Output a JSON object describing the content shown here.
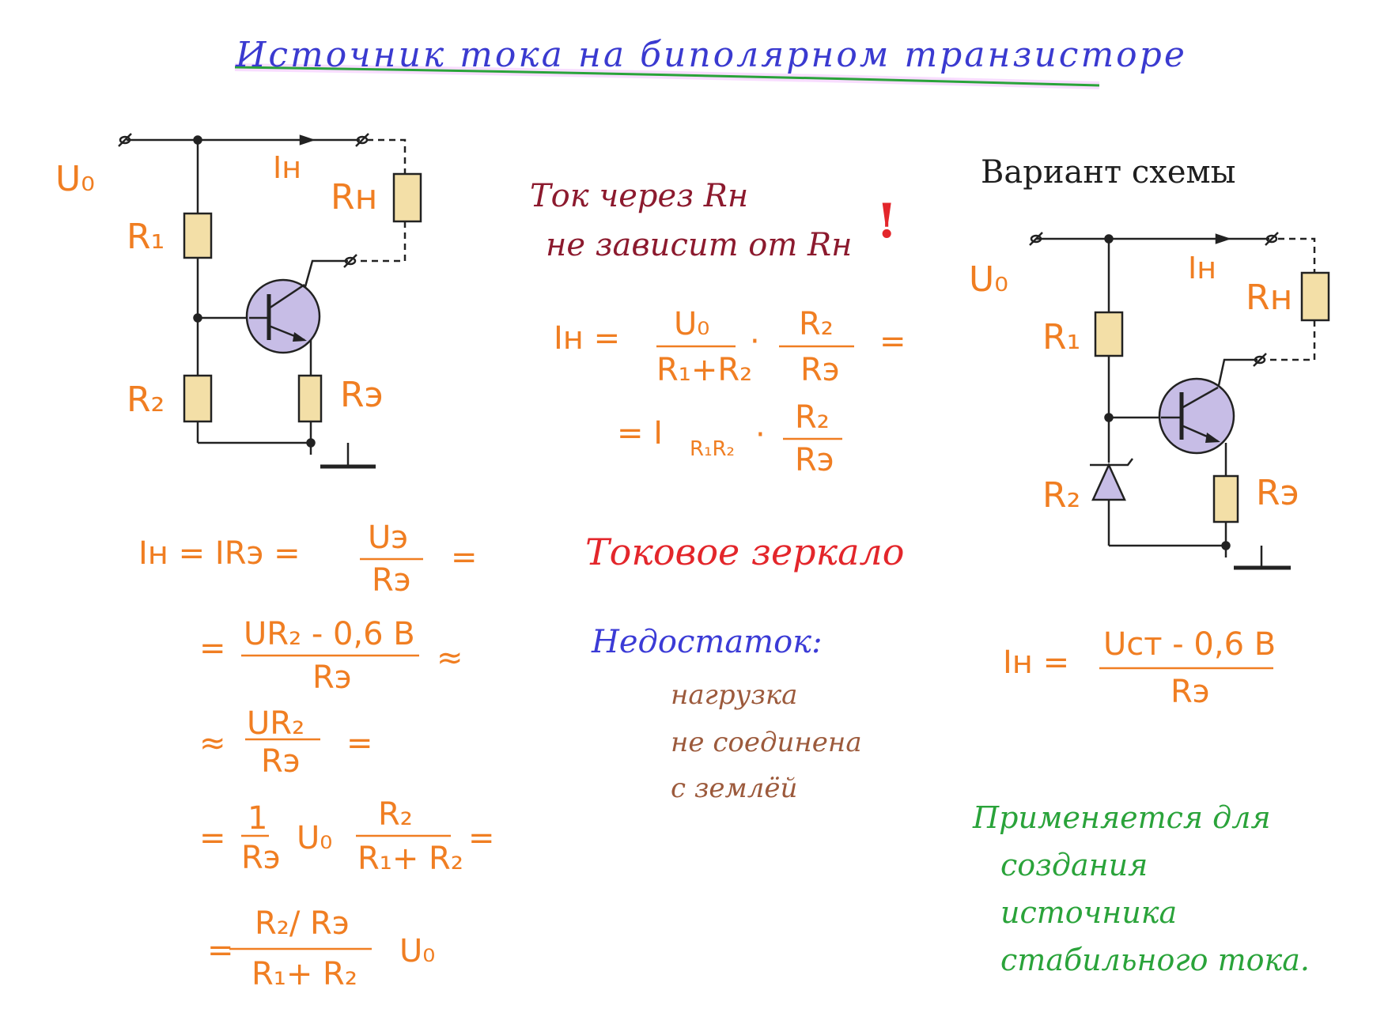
{
  "title": "Источник тока на биполярном транзисторе",
  "left_circuit": {
    "u0": "U₀",
    "ih": "Iн",
    "rh": "Rн",
    "r1": "R₁",
    "r2": "R₂",
    "re": "Rэ"
  },
  "note_independent": {
    "line1": "Ток через Rн",
    "line2": "не зависит от Rн",
    "exclaim": "!"
  },
  "formula_main": {
    "lhs": "Iн =",
    "f1_num": "U₀",
    "f1_den": "R₁+R₂",
    "dot": "·",
    "f2_num": "R₂",
    "f2_den": "Rэ",
    "eq_tail": "=",
    "line2_lhs": "= I",
    "line2_sub": "R₁R₂",
    "f3_num": "R₂",
    "f3_den": "Rэ"
  },
  "derivation": {
    "d1_lhs": "Iн = IRэ =",
    "d1_num": "Uэ",
    "d1_den": "Rэ",
    "d1_tail": "=",
    "d2_lhs": "=",
    "d2_num": "UR₂ - 0,6 B",
    "d2_den": "Rэ",
    "d2_tail": "≈",
    "d3_lhs": "≈",
    "d3_num": "UR₂",
    "d3_den": "Rэ",
    "d3_tail": "=",
    "d4_lhs": "=",
    "d4_f1_num": "1",
    "d4_f1_den": "Rэ",
    "d4_mid": "U₀",
    "d4_f2_num": "R₂",
    "d4_f2_den": "R₁+ R₂",
    "d4_tail": "=",
    "d5_lhs": "=",
    "d5_num": "R₂/ Rэ",
    "d5_den": "R₁+ R₂",
    "d5_tail": "U₀"
  },
  "current_mirror": "Токовое зеркало",
  "drawback": {
    "heading": "Недостаток:",
    "line1": "нагрузка",
    "line2": "не соединена",
    "line3": "с землёй"
  },
  "variant": {
    "heading": "Вариант схемы",
    "u0": "U₀",
    "ih": "Iн",
    "rh": "Rн",
    "r1": "R₁",
    "r2": "R₂",
    "re": "Rэ",
    "f_lhs": "Iн =",
    "f_num": "Uст - 0,6 B",
    "f_den": "Rэ"
  },
  "application": {
    "line1": "Применяется для",
    "line2": "создания",
    "line3": "источника",
    "line4": "стабильного тока."
  },
  "colors": {
    "orange": "#f07e22",
    "resistor_fill": "#f3dfa7",
    "transistor_fill": "#c7bde6",
    "title_underline": "#2aa33a"
  }
}
